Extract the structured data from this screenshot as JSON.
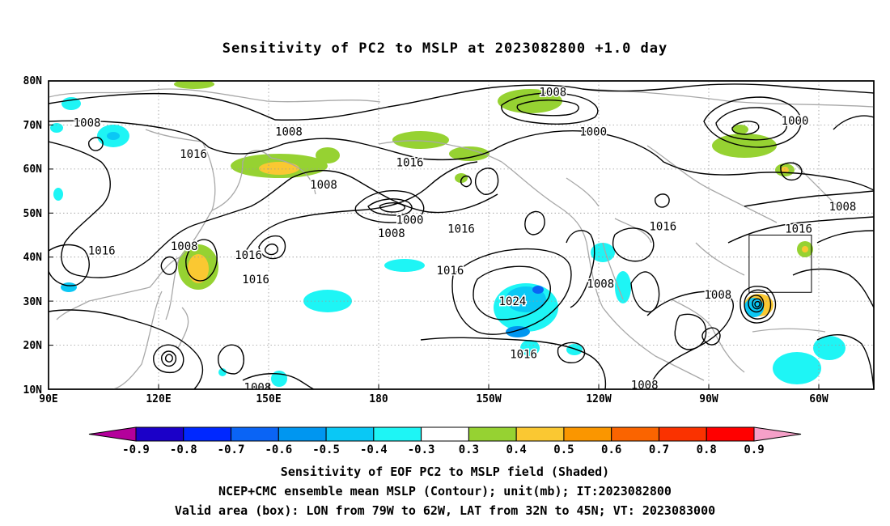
{
  "title": "Sensitivity of PC2 to MSLP at 2023082800 +1.0 day",
  "map": {
    "lat_labels": [
      "80N",
      "70N",
      "60N",
      "50N",
      "40N",
      "30N",
      "20N",
      "10N"
    ],
    "lon_labels": [
      "90E",
      "120E",
      "150E",
      "180",
      "150W",
      "120W",
      "90W",
      "60W"
    ],
    "isobar_labels": [
      {
        "text": "1008",
        "lon": 100.5,
        "lat": 70.5
      },
      {
        "text": "1008",
        "lon": 155.5,
        "lat": 68.5
      },
      {
        "text": "1016",
        "lon": 129.5,
        "lat": 63.5
      },
      {
        "text": "1008",
        "lon": -132.5,
        "lat": 77.5
      },
      {
        "text": "1000",
        "lon": -121.5,
        "lat": 68.5
      },
      {
        "text": "1000",
        "lon": -66.5,
        "lat": 71.0
      },
      {
        "text": "1016",
        "lon": -171.5,
        "lat": 61.5
      },
      {
        "text": "1008",
        "lon": 165.0,
        "lat": 56.5
      },
      {
        "text": "1000",
        "lon": -171.5,
        "lat": 48.5
      },
      {
        "text": "1008",
        "lon": -176.5,
        "lat": 45.5
      },
      {
        "text": "1016",
        "lon": -157.5,
        "lat": 46.5
      },
      {
        "text": "1016",
        "lon": 104.5,
        "lat": 41.5
      },
      {
        "text": "1008",
        "lon": 127.0,
        "lat": 42.5
      },
      {
        "text": "1016",
        "lon": 144.5,
        "lat": 40.5
      },
      {
        "text": "1016",
        "lon": 146.5,
        "lat": 35.0
      },
      {
        "text": "1016",
        "lon": -160.5,
        "lat": 37.0
      },
      {
        "text": "1016",
        "lon": -102.5,
        "lat": 47.0
      },
      {
        "text": "1008",
        "lon": -53.5,
        "lat": 51.5
      },
      {
        "text": "1016",
        "lon": -65.5,
        "lat": 46.5
      },
      {
        "text": "1008",
        "lon": -119.5,
        "lat": 34.0
      },
      {
        "text": "1024",
        "lon": -143.5,
        "lat": 30.0
      },
      {
        "text": "1008",
        "lon": -87.5,
        "lat": 31.5
      },
      {
        "text": "1016",
        "lon": -140.5,
        "lat": 18.0
      },
      {
        "text": "1008",
        "lon": -107.5,
        "lat": 11.0
      },
      {
        "text": "1008",
        "lon": 147.0,
        "lat": 10.5
      }
    ],
    "valid_box": {
      "lon_west": -79,
      "lon_east": -62,
      "lat_south": 32,
      "lat_north": 45
    }
  },
  "colorbar": {
    "labels": [
      "-0.9",
      "-0.8",
      "-0.7",
      "-0.6",
      "-0.5",
      "-0.4",
      "-0.3",
      "0.3",
      "0.4",
      "0.5",
      "0.6",
      "0.7",
      "0.8",
      "0.9"
    ],
    "colors": [
      "#b4009b",
      "#1b00c8",
      "#0028ff",
      "#0a64f5",
      "#0096f0",
      "#0ac8f5",
      "#1ef5f5",
      "#ffffff",
      "#96d232",
      "#fac832",
      "#fa9600",
      "#fa6400",
      "#fa3200",
      "#ff0000",
      "#f5a0c8"
    ]
  },
  "captions": {
    "line1": "Sensitivity of EOF PC2 to MSLP field (Shaded)",
    "line2": "NCEP+CMC ensemble mean MSLP (Contour); unit(mb); IT:2023082800",
    "line3": "Valid area (box): LON from 79W to 62W, LAT from 32N to 45N; VT: 2023083000"
  }
}
